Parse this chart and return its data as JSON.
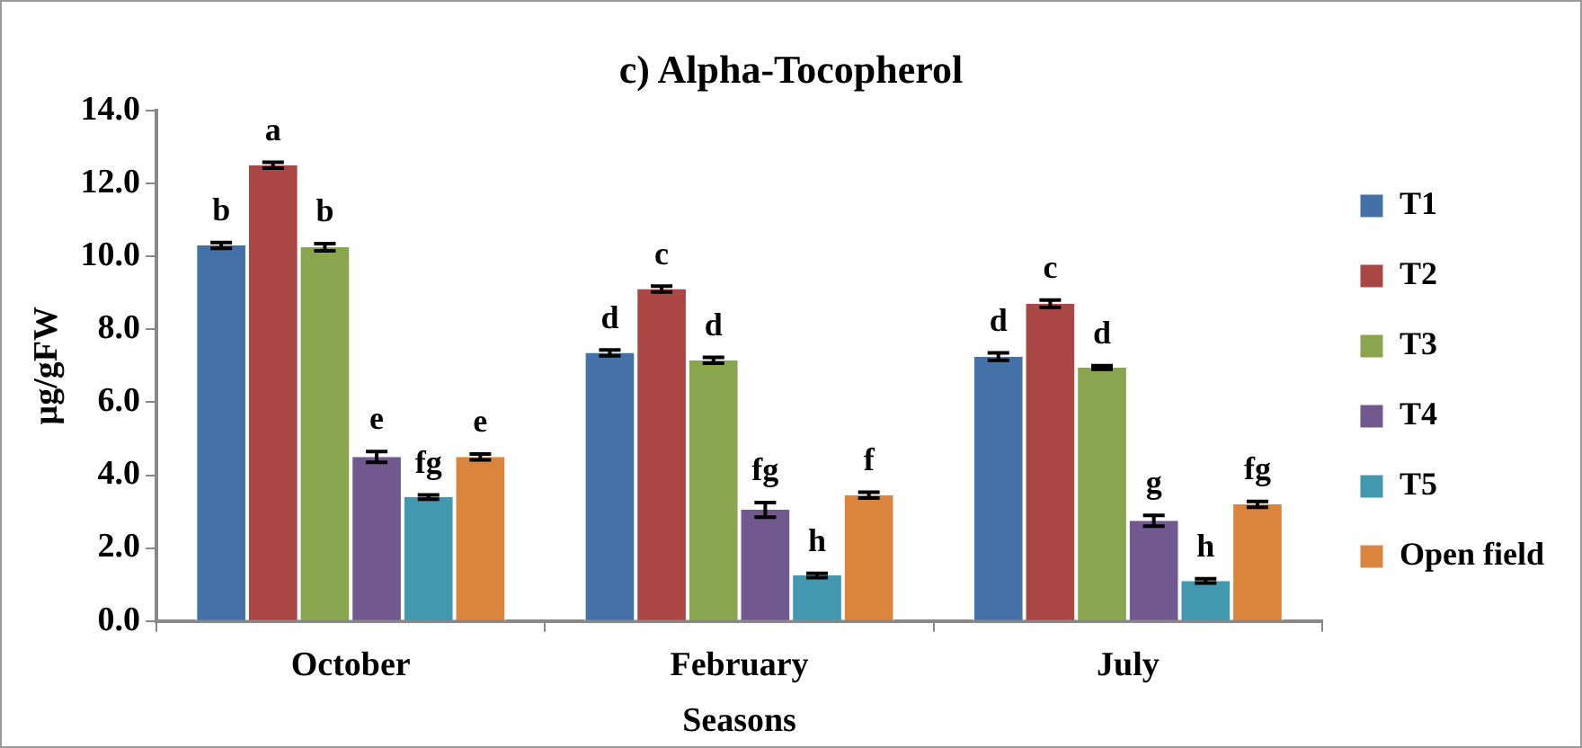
{
  "chart_data": {
    "type": "bar",
    "title": "c) Alpha-Tocopherol",
    "xlabel": "Seasons",
    "ylabel": "µg/gFW",
    "categories": [
      "October",
      "February",
      "July"
    ],
    "series": [
      {
        "name": "T1",
        "color": "#4472a8",
        "values": [
          10.3,
          7.35,
          7.25
        ],
        "errors": [
          0.08,
          0.08,
          0.1
        ],
        "value_labels": [
          "b",
          "d",
          "d"
        ]
      },
      {
        "name": "T2",
        "color": "#aa4643",
        "values": [
          12.5,
          9.1,
          8.7
        ],
        "errors": [
          0.08,
          0.08,
          0.1
        ],
        "value_labels": [
          "a",
          "c",
          "c"
        ]
      },
      {
        "name": "T3",
        "color": "#89a54e",
        "values": [
          10.25,
          7.15,
          6.95
        ],
        "errors": [
          0.1,
          0.08,
          0.05
        ],
        "value_labels": [
          "b",
          "d",
          "d"
        ]
      },
      {
        "name": "T4",
        "color": "#71588f",
        "values": [
          4.5,
          3.05,
          2.75
        ],
        "errors": [
          0.15,
          0.2,
          0.15
        ],
        "value_labels": [
          "e",
          "fg",
          "g"
        ]
      },
      {
        "name": "T5",
        "color": "#4198af",
        "values": [
          3.4,
          1.25,
          1.1
        ],
        "errors": [
          0.06,
          0.06,
          0.06
        ],
        "value_labels": [
          "fg",
          "h",
          "h"
        ]
      },
      {
        "name": "Open field",
        "color": "#db843d",
        "values": [
          4.5,
          3.45,
          3.2
        ],
        "errors": [
          0.08,
          0.08,
          0.08
        ],
        "value_labels": [
          "e",
          "f",
          "fg"
        ]
      }
    ],
    "ylim": [
      0,
      14
    ],
    "yticks": [
      {
        "value": 0,
        "label": "0.0"
      },
      {
        "value": 2,
        "label": "2.0"
      },
      {
        "value": 4,
        "label": "4.0"
      },
      {
        "value": 6,
        "label": "6.0"
      },
      {
        "value": 8,
        "label": "8.0"
      },
      {
        "value": 10,
        "label": "10.0"
      },
      {
        "value": 12,
        "label": "12.0"
      },
      {
        "value": 14,
        "label": "14.0"
      }
    ],
    "grid": false,
    "legend": "right"
  }
}
